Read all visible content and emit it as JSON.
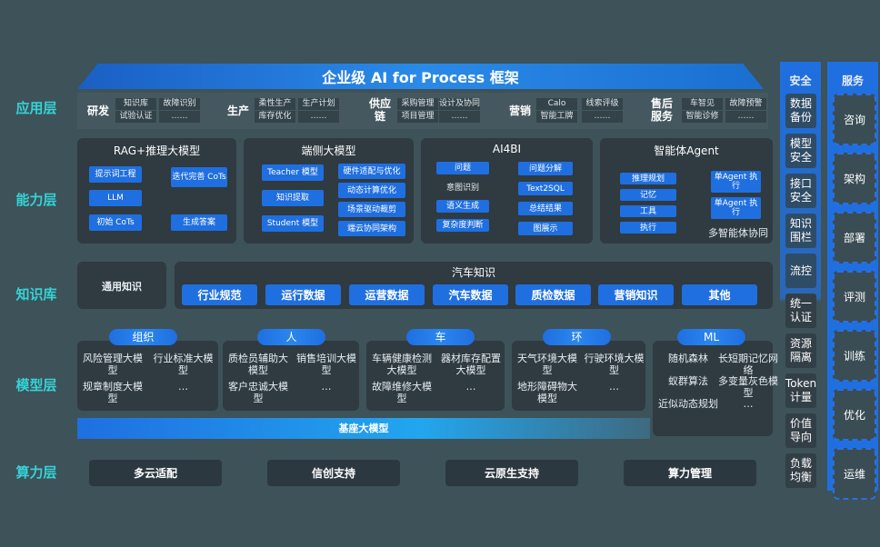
{
  "title": "企业级 AI for Process 框架",
  "layers": {
    "app": "应用层",
    "capability": "能力层",
    "knowledge": "知识库",
    "model": "模型层",
    "compute": "算力层"
  },
  "app_groups": [
    {
      "name": "研发",
      "items": [
        "知识库",
        "试验认证",
        "故障识别",
        "……"
      ]
    },
    {
      "name": "生产",
      "items": [
        "柔性生产",
        "库存优化",
        "生产计划",
        "……"
      ]
    },
    {
      "name": "供应链",
      "items": [
        "采购管理",
        "项目管理",
        "设计及协同",
        "……"
      ]
    },
    {
      "name": "营销",
      "items": [
        "Calo",
        "智能工牌",
        "线索评级",
        "……"
      ]
    },
    {
      "name": "售后服务",
      "items": [
        "车智见",
        "智能诊修",
        "故障预警",
        "……"
      ]
    }
  ],
  "capability": {
    "rag": {
      "title": "RAG+推理大模型",
      "items": [
        "提示词工程",
        "LLM",
        "初始 CoTs",
        "迭代完善 CoTs",
        "生成答案"
      ]
    },
    "edge": {
      "title": "端侧大模型",
      "left": [
        "Teacher 模型",
        "知识提取",
        "Student 模型"
      ],
      "right": [
        "硬件适配与优化",
        "动态计算优化",
        "场景驱动裁剪",
        "端云协同架构"
      ]
    },
    "ai4bi": {
      "title": "AI4BI",
      "left": [
        "问题",
        "意图识别",
        "语义生成",
        "复杂度判断"
      ],
      "right": [
        "问题分解",
        "Text2SQL",
        "总结结果",
        "图展示"
      ]
    },
    "agent": {
      "title": "智能体Agent",
      "left": [
        "推理规划",
        "记忆",
        "工具",
        "执行"
      ],
      "right": [
        "单Agent 执行",
        "单Agent 执行"
      ],
      "footer": "多智能体协同"
    }
  },
  "knowledge": {
    "general": "通用知识",
    "auto_title": "汽车知识",
    "items": [
      "行业规范",
      "运行数据",
      "运营数据",
      "汽车数据",
      "质检数据",
      "营销知识",
      "其他"
    ]
  },
  "model": {
    "groups": [
      {
        "name": "组织",
        "items": [
          "风险管理大模型",
          "行业标准大模型",
          "规章制度大模型",
          "…"
        ]
      },
      {
        "name": "人",
        "items": [
          "质检员辅助大模型",
          "销售培训大模型",
          "客户忠诚大模型",
          "…"
        ]
      },
      {
        "name": "车",
        "items": [
          "车辆健康检测大模型",
          "器材库存配置大模型",
          "故障维修大模型",
          "…"
        ]
      },
      {
        "name": "环",
        "items": [
          "天气环境大模型",
          "行驶环境大模型",
          "地形障碍物大模型",
          "…"
        ]
      },
      {
        "name": "ML",
        "items": [
          "随机森林",
          "长短期记忆网络",
          "蚁群算法",
          "多变量灰色模型",
          "近似动态规划",
          "…"
        ]
      }
    ],
    "base": "基座大模型"
  },
  "compute": [
    "多云适配",
    "信创支持",
    "云原生支持",
    "算力管理"
  ],
  "security": {
    "title": "安全",
    "items": [
      "数据备份",
      "模型安全",
      "接口安全",
      "知识围栏",
      "流控",
      "统一认证",
      "资源隔离",
      "Token计量",
      "价值导向",
      "负载均衡"
    ]
  },
  "service": {
    "title": "服务",
    "items": [
      "咨询",
      "架构",
      "部署",
      "评测",
      "训练",
      "优化",
      "运维"
    ]
  },
  "colors": {
    "background": "#3e5259",
    "accent": "#1f6fe0",
    "layer_label": "#35d3d6",
    "panel": "#2f3a41"
  }
}
